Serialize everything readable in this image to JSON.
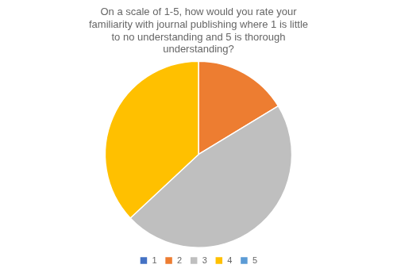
{
  "chart_data": {
    "type": "pie",
    "title": "On a scale of 1-5, how would you rate your\nfamiliarity with journal publishing where 1 is little\nto no understanding and 5 is thorough\nunderstanding?",
    "categories": [
      "1",
      "2",
      "3",
      "4",
      "5"
    ],
    "values": [
      0,
      15,
      43,
      34,
      0
    ],
    "colors": [
      "#4472C4",
      "#ED7D31",
      "#BFBFBF",
      "#FFC000",
      "#5B9BD5"
    ],
    "legend": "bottom"
  }
}
